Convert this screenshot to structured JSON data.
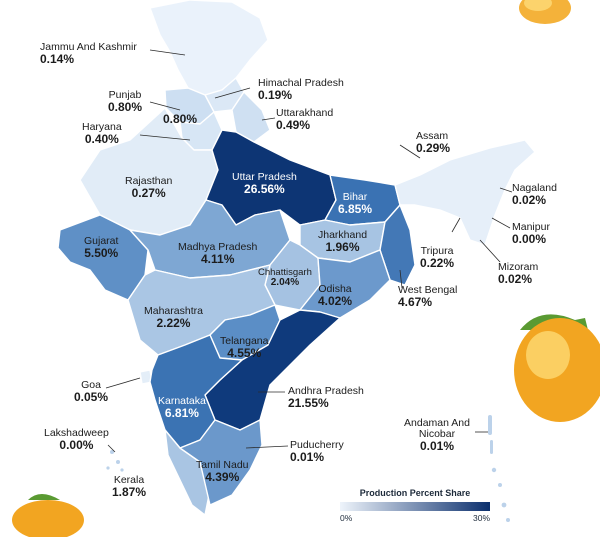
{
  "colors": {
    "low": "#dde9f6",
    "mid": "#8fb4da",
    "high": "#0b2f6d",
    "border": "#ffffff",
    "mango": "#f2a521",
    "leaf": "#4b8a2d"
  },
  "legend": {
    "title": "Production Percent Share",
    "min_label": "0%",
    "max_label": "30%"
  },
  "states": [
    {
      "name": "Jammu And Kashmir",
      "value": "0.14%"
    },
    {
      "name": "Himachal Pradesh",
      "value": "0.19%"
    },
    {
      "name": "Punjab",
      "value": "0.80%"
    },
    {
      "name": "",
      "value": "0.80%"
    },
    {
      "name": "Uttarakhand",
      "value": "0.49%"
    },
    {
      "name": "Haryana",
      "value": "0.40%"
    },
    {
      "name": "Rajasthan",
      "value": "0.27%"
    },
    {
      "name": "Uttar Pradesh",
      "value": "26.56%"
    },
    {
      "name": "Bihar",
      "value": "6.85%"
    },
    {
      "name": "Assam",
      "value": "0.29%"
    },
    {
      "name": "Nagaland",
      "value": "0.02%"
    },
    {
      "name": "Manipur",
      "value": "0.00%"
    },
    {
      "name": "Mizoram",
      "value": "0.02%"
    },
    {
      "name": "Tripura",
      "value": "0.22%"
    },
    {
      "name": "Jharkhand",
      "value": "1.96%"
    },
    {
      "name": "West Bengal",
      "value": "4.67%"
    },
    {
      "name": "Gujarat",
      "value": "5.50%"
    },
    {
      "name": "Madhya Pradesh",
      "value": "4.11%"
    },
    {
      "name": "Chhattisgarh",
      "value": "2.04%"
    },
    {
      "name": "Odisha",
      "value": "4.02%"
    },
    {
      "name": "Maharashtra",
      "value": "2.22%"
    },
    {
      "name": "Telangana",
      "value": "4.55%"
    },
    {
      "name": "Goa",
      "value": "0.05%"
    },
    {
      "name": "Karnataka",
      "value": "6.81%"
    },
    {
      "name": "Andhra Pradesh",
      "value": "21.55%"
    },
    {
      "name": "Lakshadweep",
      "value": "0.00%"
    },
    {
      "name": "Puducherry",
      "value": "0.01%"
    },
    {
      "name": "Andaman And Nicobar",
      "value": "0.01%"
    },
    {
      "name": "Tamil Nadu",
      "value": "4.39%"
    },
    {
      "name": "Kerala",
      "value": "1.87%"
    }
  ]
}
